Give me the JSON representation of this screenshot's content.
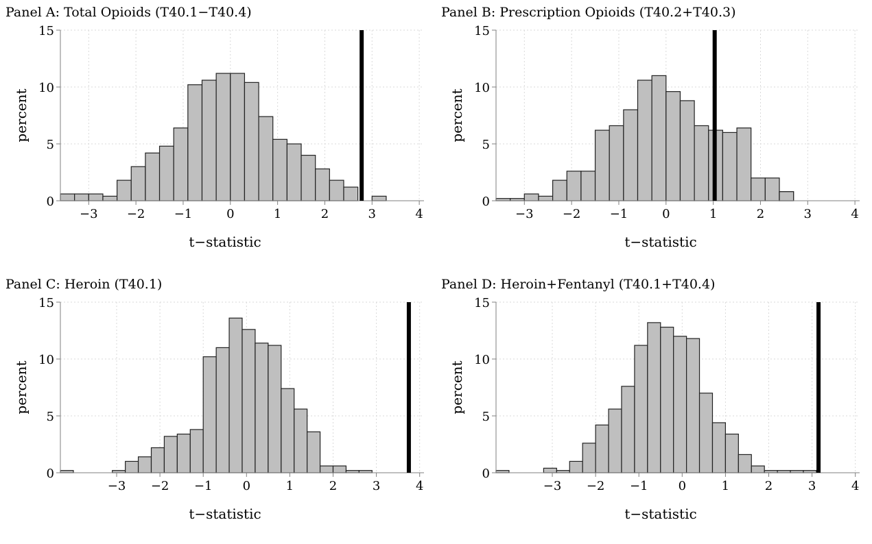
{
  "chart_data": [
    {
      "type": "bar",
      "title": "Panel A: Total Opioids (T40.1−T40.4)",
      "xlabel": "t−statistic",
      "ylabel": "percent",
      "xlim": [
        -3.6,
        4.1
      ],
      "ylim": [
        0,
        15
      ],
      "xticks": [
        -3,
        -2,
        -1,
        0,
        1,
        2,
        3,
        4
      ],
      "xtick_labels": [
        "−3",
        "−2",
        "−1",
        "0",
        "1",
        "2",
        "3",
        "4"
      ],
      "yticks": [
        0,
        5,
        10,
        15
      ],
      "ytick_labels": [
        "0",
        "5",
        "10",
        "15"
      ],
      "grid": true,
      "bin_width": 0.3,
      "bin_starts": [
        -3.6,
        -3.3,
        -3.0,
        -2.7,
        -2.4,
        -2.1,
        -1.8,
        -1.5,
        -1.2,
        -0.9,
        -0.6,
        -0.3,
        0.0,
        0.3,
        0.6,
        0.9,
        1.2,
        1.5,
        1.8,
        2.1,
        2.4,
        3.0
      ],
      "values": [
        0.6,
        0.6,
        0.6,
        0.4,
        1.8,
        3.0,
        4.2,
        4.8,
        6.4,
        10.2,
        10.6,
        11.2,
        11.2,
        10.4,
        7.4,
        5.4,
        5.0,
        4.0,
        2.8,
        1.8,
        1.2,
        0.4
      ],
      "reference_line": 2.78
    },
    {
      "type": "bar",
      "title": "Panel B: Prescription Opioids (T40.2+T40.3)",
      "xlabel": "t−statistic",
      "ylabel": "percent",
      "xlim": [
        -3.6,
        4.1
      ],
      "ylim": [
        0,
        15
      ],
      "xticks": [
        -3,
        -2,
        -1,
        0,
        1,
        2,
        3,
        4
      ],
      "xtick_labels": [
        "−3",
        "−2",
        "−1",
        "0",
        "1",
        "2",
        "3",
        "4"
      ],
      "yticks": [
        0,
        5,
        10,
        15
      ],
      "ytick_labels": [
        "0",
        "5",
        "10",
        "15"
      ],
      "grid": true,
      "bin_width": 0.3,
      "bin_starts": [
        -3.6,
        -3.3,
        -3.0,
        -2.7,
        -2.4,
        -2.1,
        -1.8,
        -1.5,
        -1.2,
        -0.9,
        -0.6,
        -0.3,
        0.0,
        0.3,
        0.6,
        0.9,
        1.2,
        1.5,
        1.8,
        2.1,
        2.4
      ],
      "values": [
        0.2,
        0.2,
        0.6,
        0.4,
        1.8,
        2.6,
        2.6,
        6.2,
        6.6,
        8.0,
        10.6,
        11.0,
        9.6,
        8.8,
        6.6,
        6.2,
        6.0,
        6.4,
        2.0,
        2.0,
        0.8
      ],
      "extra_bins": [
        {
          "start": 2.4,
          "width": 0.3,
          "value": 0.8
        }
      ],
      "reference_line": 1.03
    },
    {
      "type": "bar",
      "title": "Panel C: Heroin (T40.1)",
      "xlabel": "t−statistic",
      "ylabel": "percent",
      "xlim": [
        -4.3,
        4.1
      ],
      "ylim": [
        0,
        15
      ],
      "xticks": [
        -3,
        -2,
        -1,
        0,
        1,
        2,
        3,
        4
      ],
      "xtick_labels": [
        "−3",
        "−2",
        "−1",
        "0",
        "1",
        "2",
        "3",
        "4"
      ],
      "yticks": [
        0,
        5,
        10,
        15
      ],
      "ytick_labels": [
        "0",
        "5",
        "10",
        "15"
      ],
      "grid": true,
      "bin_width": 0.3,
      "bin_starts": [
        -4.3,
        -3.1,
        -2.8,
        -2.5,
        -2.2,
        -1.9,
        -1.6,
        -1.3,
        -1.0,
        -0.7,
        -0.4,
        -0.1,
        0.2,
        0.5,
        0.8,
        1.1,
        1.4,
        1.7,
        2.0,
        2.3,
        2.6
      ],
      "values": [
        0.2,
        0.2,
        1.0,
        1.4,
        2.2,
        3.2,
        3.4,
        3.8,
        10.2,
        11.0,
        13.6,
        12.6,
        11.4,
        11.2,
        7.4,
        5.6,
        3.6,
        0.6,
        0.6,
        0.2,
        0.2
      ],
      "reference_line": 3.75
    },
    {
      "type": "bar",
      "title": "Panel D: Heroin+Fentanyl (T40.1+T40.4)",
      "xlabel": "t−statistic",
      "ylabel": "percent",
      "xlim": [
        -4.3,
        4.1
      ],
      "ylim": [
        0,
        15
      ],
      "xticks": [
        -3,
        -2,
        -1,
        0,
        1,
        2,
        3,
        4
      ],
      "xtick_labels": [
        "−3",
        "−2",
        "−1",
        "0",
        "1",
        "2",
        "3",
        "4"
      ],
      "yticks": [
        0,
        5,
        10,
        15
      ],
      "ytick_labels": [
        "0",
        "5",
        "10",
        "15"
      ],
      "grid": true,
      "bin_width": 0.3,
      "bin_starts": [
        -4.3,
        -3.2,
        -2.9,
        -2.6,
        -2.3,
        -2.0,
        -1.7,
        -1.4,
        -1.1,
        -0.8,
        -0.5,
        -0.2,
        0.1,
        0.4,
        0.7,
        1.0,
        1.3,
        1.6,
        1.9,
        2.2,
        2.5,
        2.8
      ],
      "values": [
        0.2,
        0.4,
        0.2,
        1.0,
        2.6,
        4.2,
        5.6,
        7.6,
        11.2,
        13.2,
        12.8,
        12.0,
        11.8,
        7.0,
        4.4,
        3.4,
        1.6,
        0.6,
        0.2,
        0.2,
        0.2,
        0.2
      ],
      "reference_line": 3.15
    }
  ]
}
